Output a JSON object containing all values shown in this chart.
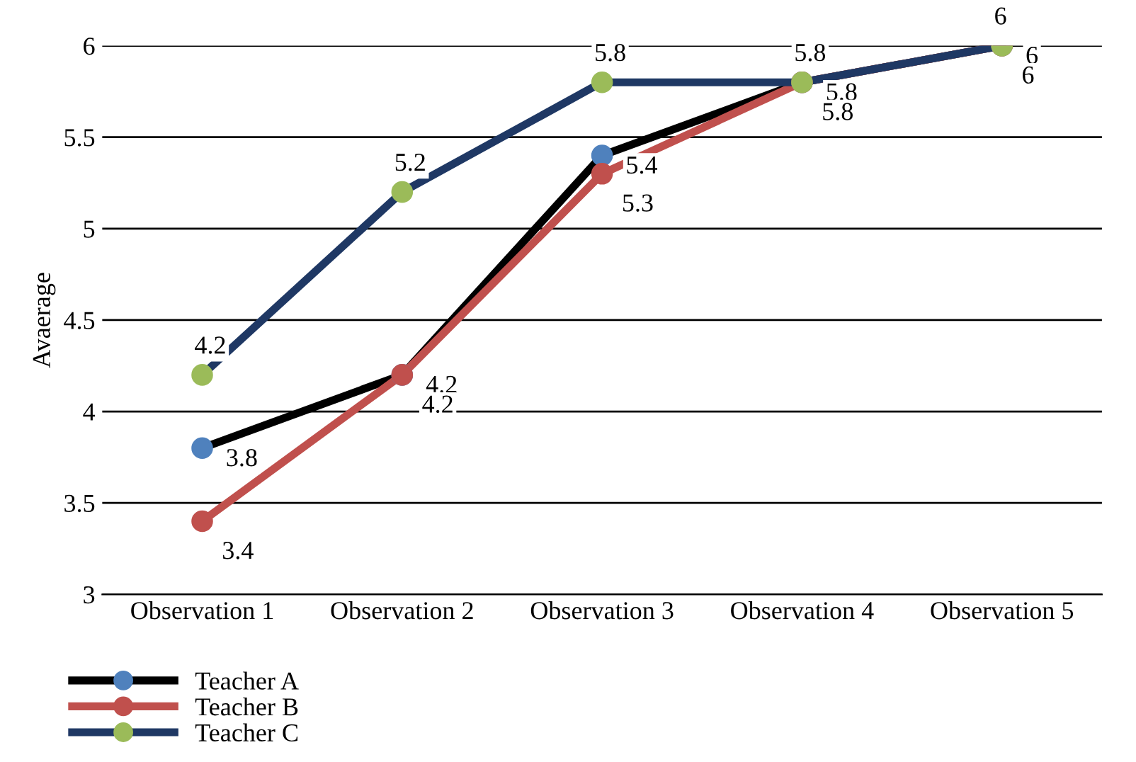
{
  "chart_data": {
    "type": "line",
    "ylabel": "Avaerage",
    "categories": [
      "Observation 1",
      "Observation 2",
      "Observation 3",
      "Observation 4",
      "Observation 5"
    ],
    "series": [
      {
        "name": "Teacher A",
        "color": "#000000",
        "colors": [
          "#4f81bd",
          "#4f81bd",
          "#4f81bd",
          "#4f81bd",
          "#4f81bd"
        ],
        "values": [
          3.8,
          4.2,
          5.4,
          5.8,
          6
        ]
      },
      {
        "name": "Teacher B",
        "color": "#c0504d",
        "colors": [
          "#c0504d",
          "#c0504d",
          "#c0504d",
          "#c0504d",
          "#c0504d"
        ],
        "values": [
          3.4,
          4.2,
          5.3,
          5.8,
          6
        ]
      },
      {
        "name": "Teacher C",
        "color": "#1f3864",
        "colors": [
          "#9bbb59",
          "#9bbb59",
          "#9bbb59",
          "#9bbb59",
          "#9bbb59"
        ],
        "values": [
          4.2,
          5.2,
          5.8,
          5.8,
          6
        ]
      }
    ],
    "ylim": [
      3,
      6
    ],
    "yticks": [
      3,
      3.5,
      4,
      4.5,
      5,
      5.5,
      6
    ],
    "grid": "y",
    "legend": "bottom left",
    "marker": "circle",
    "line_style": "solid",
    "data_labels": true
  }
}
